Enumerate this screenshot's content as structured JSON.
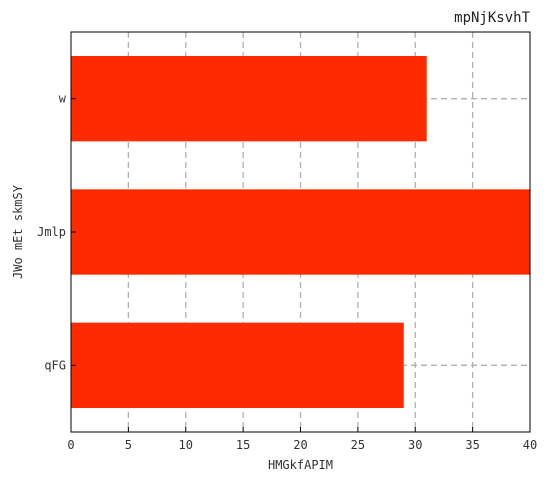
{
  "chart_data": {
    "type": "bar",
    "orientation": "horizontal",
    "title": "mpNjKsvhT",
    "xlabel": "HMGkfAPIM",
    "ylabel": "JWo mEt skmSY",
    "categories": [
      "w",
      "Jmlp",
      "qFG"
    ],
    "values": [
      31,
      40,
      29
    ],
    "xlim": [
      0,
      40
    ],
    "x_ticks": [
      "0",
      "5",
      "10",
      "15",
      "20",
      "25",
      "30",
      "35",
      "40"
    ],
    "grid": true,
    "bar_color": "#ff2a00",
    "grid_color": "#b0b0b0"
  }
}
